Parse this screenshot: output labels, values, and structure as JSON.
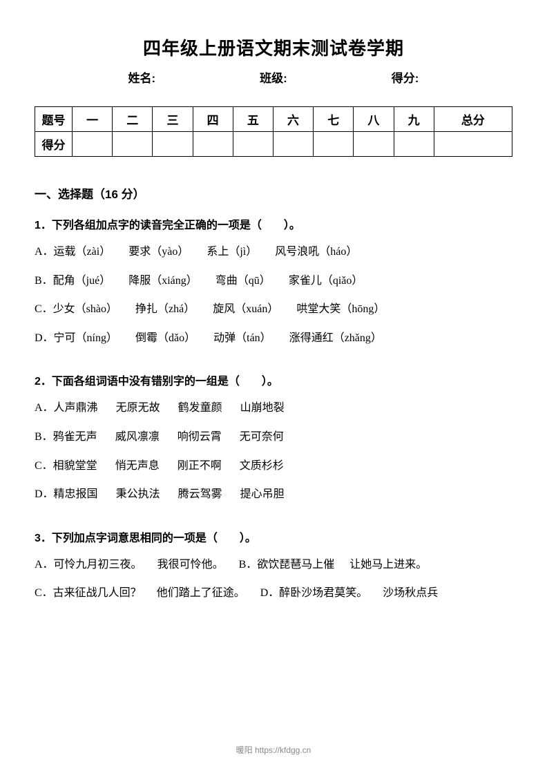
{
  "title": "四年级上册语文期末测试卷学期",
  "header": {
    "name_label": "姓名:",
    "class_label": "班级:",
    "score_label": "得分:"
  },
  "score_table": {
    "row1_label": "题号",
    "row2_label": "得分",
    "columns": [
      "一",
      "二",
      "三",
      "四",
      "五",
      "六",
      "七",
      "八",
      "九",
      "总分"
    ]
  },
  "section1": {
    "title": "一、选择题（16 分）",
    "q1": {
      "stem": "1．下列各组加点字的读音完全正确的一项是（　　）。",
      "options": {
        "A": [
          "A．运载（zài）",
          "要求（yào）",
          "系上（jì）",
          "风号浪吼（háo）"
        ],
        "B": [
          "B．配角（jué）",
          "降服（xiáng）",
          "弯曲（qū）",
          "家雀儿（qiǎo）"
        ],
        "C": [
          "C．少女（shào）",
          "挣扎（zhá）",
          "旋风（xuán）",
          "哄堂大笑（hōng）"
        ],
        "D": [
          "D．宁可（níng）",
          "倒霉（dǎo）",
          "动弹（tán）",
          "涨得通红（zhǎng）"
        ]
      }
    },
    "q2": {
      "stem": "2．下面各组词语中没有错别字的一组是（　　）。",
      "options": {
        "A": [
          "A．人声鼎沸",
          "无原无故",
          "鹤发童颜",
          "山崩地裂"
        ],
        "B": [
          "B．鸦雀无声",
          "威风凛凛",
          "响彻云霄",
          "无可奈何"
        ],
        "C": [
          "C．相貌堂堂",
          "悄无声息",
          "刚正不啊",
          "文质杉杉"
        ],
        "D": [
          "D．精忠报国",
          "秉公执法",
          "腾云驾雾",
          "提心吊胆"
        ]
      }
    },
    "q3": {
      "stem": "3．下列加点字词意思相同的一项是（　　）。",
      "row1": {
        "A1": "A．可怜九月初三夜。",
        "A2": "我很可怜他。",
        "B1": "B．欲饮琵琶马上催",
        "B2": "让她马上进来。"
      },
      "row2": {
        "C1": "C．古来征战几人回？",
        "C2": "他们踏上了征途。",
        "D1": "D．醉卧沙场君莫笑。",
        "D2": "沙场秋点兵"
      }
    }
  },
  "footer": "暖阳 https://kfdgg.cn"
}
